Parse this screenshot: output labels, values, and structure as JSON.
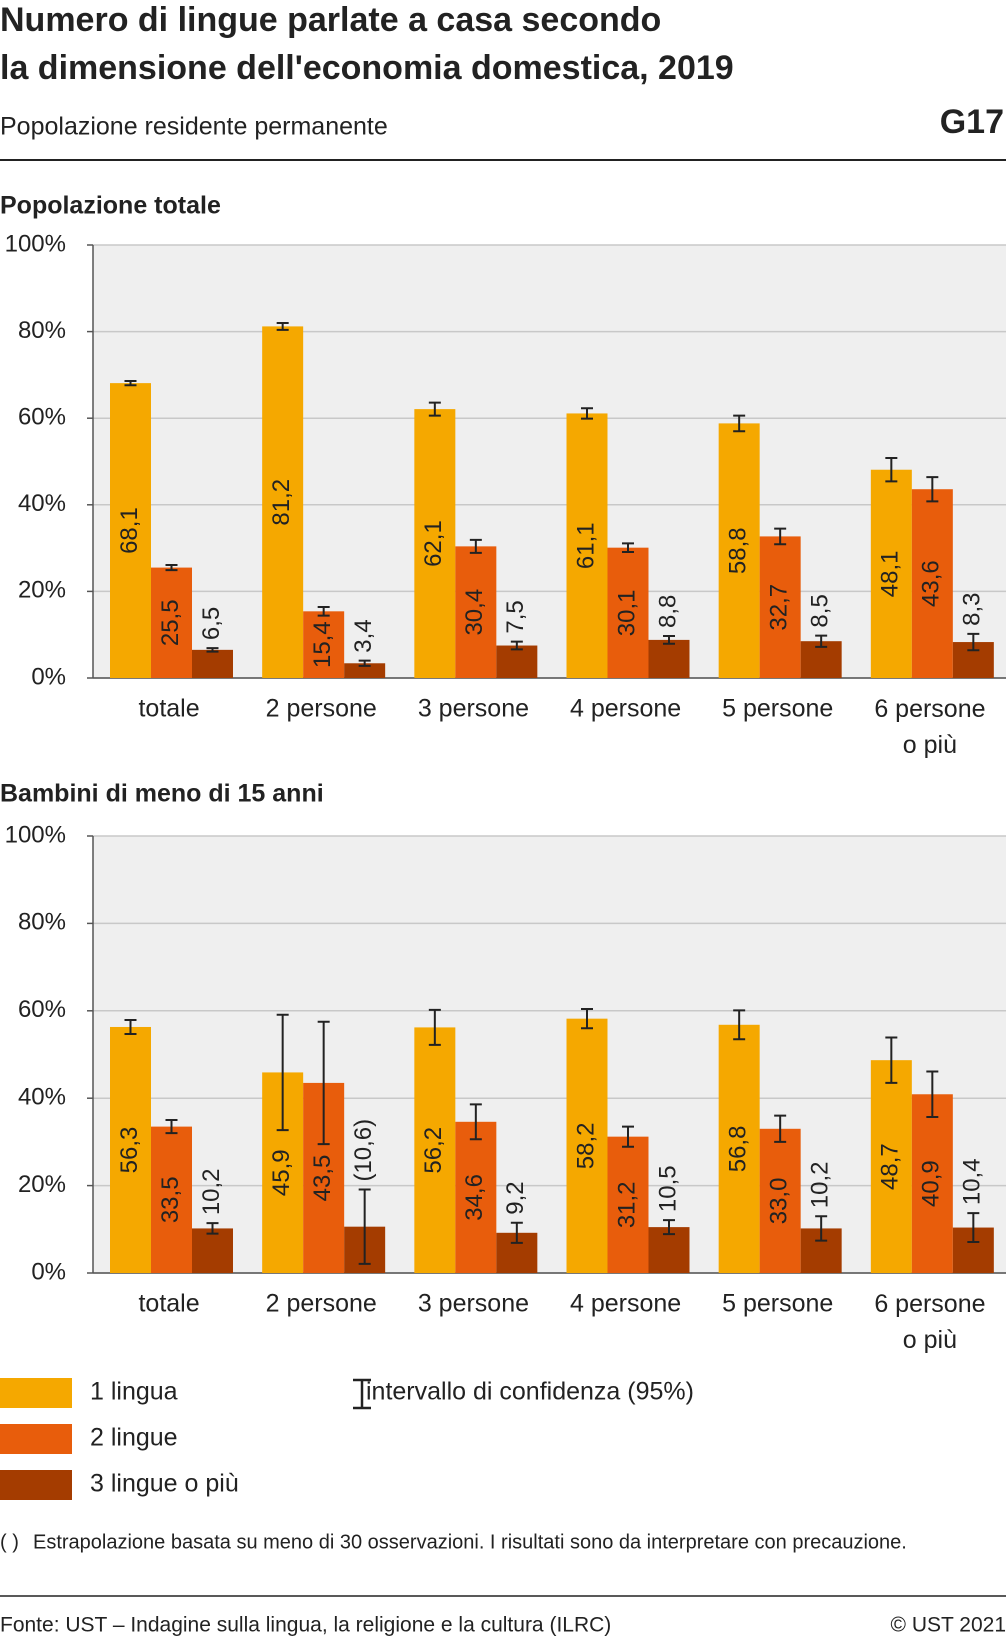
{
  "title": "Numero di lingue parlate a casa secondo\nla dimensione dell'economia domestica, 2019",
  "subtitle": "Popolazione residente permanente",
  "code": "G17",
  "chart_data": [
    {
      "type": "bar",
      "title": "Popolazione totale",
      "categories": [
        "totale",
        "2 persone",
        "3 persone",
        "4 persone",
        "5 persone",
        "6 persone\no più"
      ],
      "series": [
        {
          "name": "1 lingua",
          "color": "#f5a800",
          "values": [
            68.1,
            81.2,
            62.1,
            61.1,
            58.8,
            48.1
          ],
          "value_labels": [
            "68,1",
            "81,2",
            "62,1",
            "61,1",
            "58,8",
            "48,1"
          ],
          "errors": [
            0.5,
            0.8,
            1.5,
            1.2,
            1.8,
            2.7
          ]
        },
        {
          "name": "2 lingue",
          "color": "#e85d0c",
          "values": [
            25.5,
            15.4,
            30.4,
            30.1,
            32.7,
            43.6
          ],
          "value_labels": [
            "25,5",
            "15,4",
            "30,4",
            "30,1",
            "32,7",
            "43,6"
          ],
          "errors": [
            0.6,
            1.0,
            1.5,
            1.0,
            1.8,
            2.8
          ]
        },
        {
          "name": "3 lingue o più",
          "color": "#a43c00",
          "values": [
            6.5,
            3.4,
            7.5,
            8.8,
            8.5,
            8.3
          ],
          "value_labels": [
            "6,5",
            "3,4",
            "7,5",
            "8,8",
            "8,5",
            "8,3"
          ],
          "errors": [
            0.4,
            0.6,
            0.9,
            0.9,
            1.3,
            1.9
          ]
        }
      ],
      "ylim": [
        0,
        100
      ],
      "yticks": [
        {
          "value": 0,
          "label": "0%"
        },
        {
          "value": 20,
          "label": "20%"
        },
        {
          "value": 40,
          "label": "40%"
        },
        {
          "value": 60,
          "label": "60%"
        },
        {
          "value": 80,
          "label": "80%"
        },
        {
          "value": 100,
          "label": "100%"
        }
      ],
      "grid": true
    },
    {
      "type": "bar",
      "title": "Bambini di meno di 15 anni",
      "categories": [
        "totale",
        "2 persone",
        "3 persone",
        "4 persone",
        "5 persone",
        "6 persone\no più"
      ],
      "series": [
        {
          "color": "#f5a800",
          "values": [
            56.3,
            45.9,
            56.2,
            58.2,
            56.8,
            48.7
          ],
          "value_labels": [
            "56,3",
            "45,9",
            "56,2",
            "58,2",
            "56,8",
            "48,7"
          ],
          "errors": [
            1.6,
            13.2,
            4.0,
            2.2,
            3.3,
            5.2
          ]
        },
        {
          "color": "#e85d0c",
          "values": [
            33.5,
            43.5,
            34.6,
            31.2,
            33.0,
            40.9
          ],
          "value_labels": [
            "33,5",
            "43,5",
            "34,6",
            "31,2",
            "33,0",
            "40,9"
          ],
          "errors": [
            1.5,
            14.0,
            4.0,
            2.3,
            3.0,
            5.2
          ]
        },
        {
          "color": "#a43c00",
          "values": [
            10.2,
            10.6,
            9.2,
            10.5,
            10.2,
            10.4
          ],
          "value_labels": [
            "10,2",
            "(10,6)",
            "9,2",
            "10,5",
            "10,2",
            "10,4"
          ],
          "errors": [
            1.2,
            8.5,
            2.3,
            1.6,
            2.8,
            3.3
          ]
        }
      ],
      "ylim": [
        0,
        100
      ],
      "yticks": [
        {
          "value": 0,
          "label": "0%"
        },
        {
          "value": 20,
          "label": "20%"
        },
        {
          "value": 40,
          "label": "40%"
        },
        {
          "value": 60,
          "label": "60%"
        },
        {
          "value": 80,
          "label": "80%"
        },
        {
          "value": 100,
          "label": "100%"
        }
      ],
      "grid": true
    }
  ],
  "ci_label": "intervallo di confidenza (95%)",
  "footnote": {
    "symbol": "( )",
    "text": "Estrapolazione basata su meno di 30 osservazioni. I risultati sono da interpretare con precauzione."
  },
  "source": "Fonte: UST – Indagine sulla lingua, la religione e la cultura (ILRC)",
  "copyright": "© UST 2021"
}
